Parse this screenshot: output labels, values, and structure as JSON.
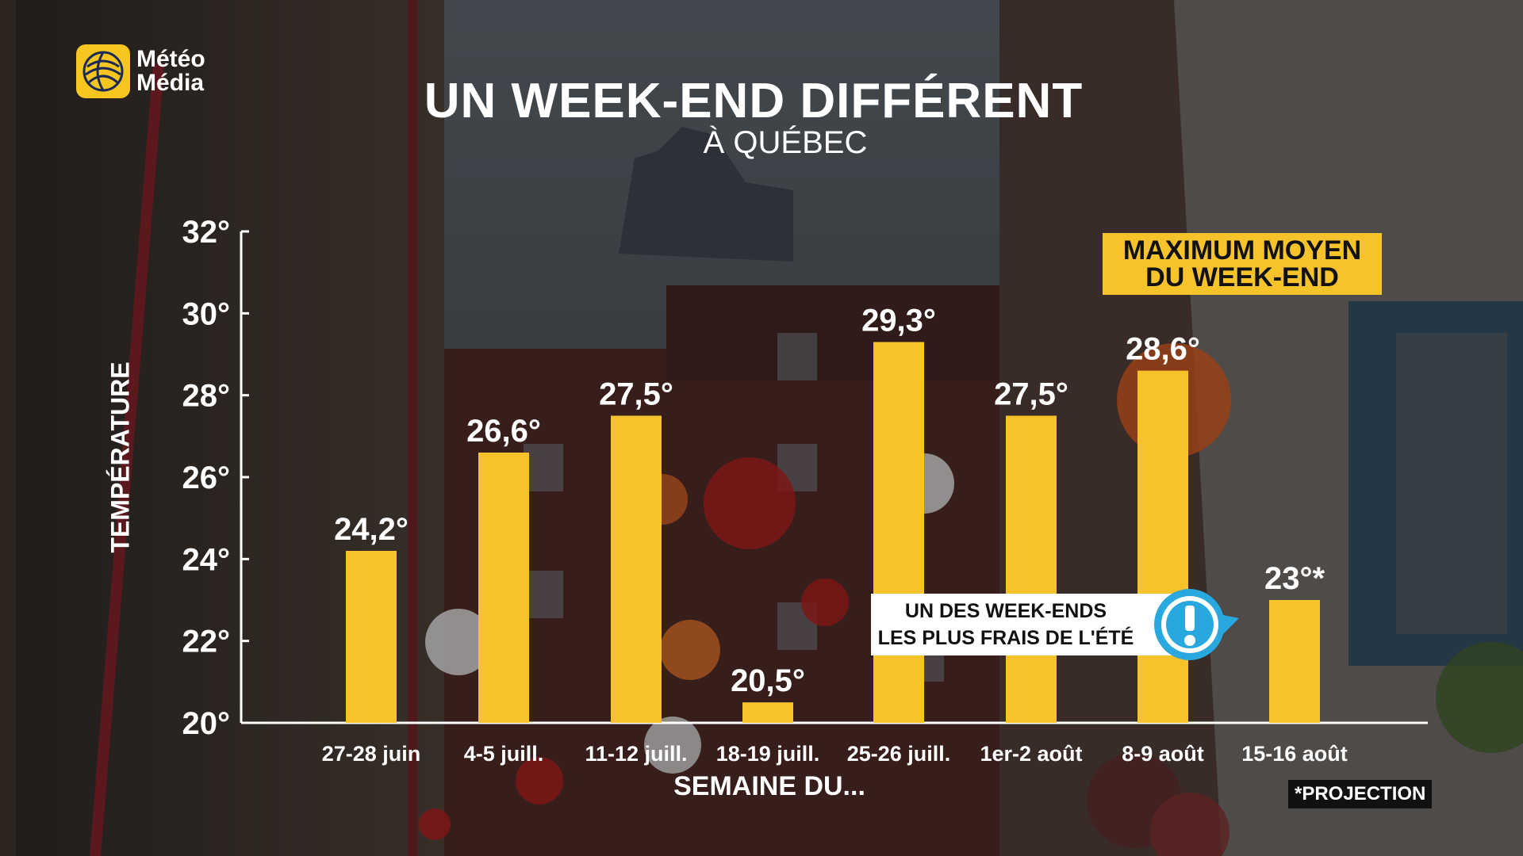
{
  "brand": {
    "line1": "Météo",
    "line2": "Média"
  },
  "header": {
    "title": "UN WEEK-END DIFFÉRENT",
    "subtitle": "À QUÉBEC"
  },
  "badge": {
    "line1": "MAXIMUM MOYEN",
    "line2": "DU WEEK-END"
  },
  "callout": {
    "line1": "UN DES WEEK-ENDS",
    "line2": "LES PLUS FRAIS DE L'ÉTÉ"
  },
  "footnote": "*PROJECTION",
  "colors": {
    "bar": "#f7c32a",
    "axis": "#ffffff",
    "badge": "#f7c32a",
    "alert": "#29a8e0"
  },
  "icons": {
    "logo": "globe-logo-icon",
    "alert": "exclamation-icon"
  },
  "chart_data": {
    "type": "bar",
    "title": "UN WEEK-END DIFFÉRENT",
    "subtitle": "À QUÉBEC",
    "xlabel": "SEMAINE DU...",
    "ylabel": "TEMPÉRATURE",
    "ylim": [
      20,
      32
    ],
    "yticks": [
      20,
      22,
      24,
      26,
      28,
      30,
      32
    ],
    "ytick_labels": [
      "20°",
      "22°",
      "24°",
      "26°",
      "28°",
      "30°",
      "32°"
    ],
    "categories": [
      "27-28 juin",
      "4-5 juill.",
      "11-12 juill.",
      "18-19 juill.",
      "25-26 juill.",
      "1er-2 août",
      "8-9 août",
      "15-16 août"
    ],
    "values": [
      24.2,
      26.6,
      27.5,
      20.5,
      29.3,
      27.5,
      28.6,
      23
    ],
    "value_labels": [
      "24,2°",
      "26,6°",
      "27,5°",
      "20,5°",
      "29,3°",
      "27,5°",
      "28,6°",
      "23°*"
    ],
    "grid": false,
    "legend": "none"
  }
}
